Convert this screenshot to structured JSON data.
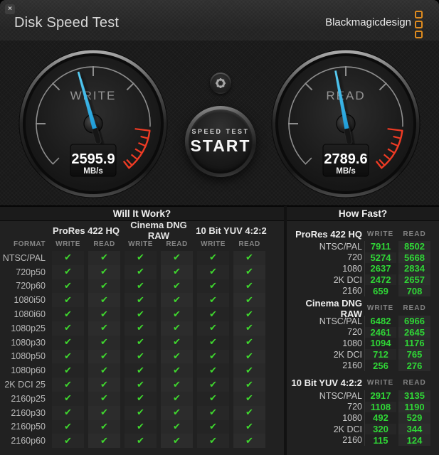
{
  "window": {
    "title": "Disk Speed Test",
    "brand": "Blackmagicdesign",
    "close_glyph": "×"
  },
  "gauges": {
    "write": {
      "label": "WRITE",
      "value": "2595.9",
      "unit": "MB/s"
    },
    "read": {
      "label": "READ",
      "value": "2789.6",
      "unit": "MB/s"
    }
  },
  "controls": {
    "start_label_small": "SPEED TEST",
    "start_label_big": "START"
  },
  "colors": {
    "accent_orange": "#de8b1f",
    "needle_blue": "#2fb5e9",
    "check_green": "#3fd82e",
    "value_green": "#2fd636",
    "redzone_red": "#ef3b24"
  },
  "will_it_work": {
    "title": "Will It Work?",
    "format_header": "FORMAT",
    "codec_groups": [
      "ProRes 422 HQ",
      "Cinema DNG RAW",
      "10 Bit YUV 4:2:2"
    ],
    "sub_headers": [
      "WRITE",
      "READ"
    ],
    "check_glyph": "✔",
    "rows": [
      {
        "format": "NTSC/PAL",
        "checks": [
          true,
          true,
          true,
          true,
          true,
          true
        ]
      },
      {
        "format": "720p50",
        "checks": [
          true,
          true,
          true,
          true,
          true,
          true
        ]
      },
      {
        "format": "720p60",
        "checks": [
          true,
          true,
          true,
          true,
          true,
          true
        ]
      },
      {
        "format": "1080i50",
        "checks": [
          true,
          true,
          true,
          true,
          true,
          true
        ]
      },
      {
        "format": "1080i60",
        "checks": [
          true,
          true,
          true,
          true,
          true,
          true
        ]
      },
      {
        "format": "1080p25",
        "checks": [
          true,
          true,
          true,
          true,
          true,
          true
        ]
      },
      {
        "format": "1080p30",
        "checks": [
          true,
          true,
          true,
          true,
          true,
          true
        ]
      },
      {
        "format": "1080p50",
        "checks": [
          true,
          true,
          true,
          true,
          true,
          true
        ]
      },
      {
        "format": "1080p60",
        "checks": [
          true,
          true,
          true,
          true,
          true,
          true
        ]
      },
      {
        "format": "2K DCI 25",
        "checks": [
          true,
          true,
          true,
          true,
          true,
          true
        ]
      },
      {
        "format": "2160p25",
        "checks": [
          true,
          true,
          true,
          true,
          true,
          true
        ]
      },
      {
        "format": "2160p30",
        "checks": [
          true,
          true,
          true,
          true,
          true,
          true
        ]
      },
      {
        "format": "2160p50",
        "checks": [
          true,
          true,
          true,
          true,
          true,
          true
        ]
      },
      {
        "format": "2160p60",
        "checks": [
          true,
          true,
          true,
          true,
          true,
          true
        ]
      }
    ]
  },
  "how_fast": {
    "title": "How Fast?",
    "col_headers": [
      "WRITE",
      "READ"
    ],
    "sections": [
      {
        "codec": "ProRes 422 HQ",
        "rows": [
          {
            "format": "NTSC/PAL",
            "write": "7911",
            "read": "8502"
          },
          {
            "format": "720",
            "write": "5274",
            "read": "5668"
          },
          {
            "format": "1080",
            "write": "2637",
            "read": "2834"
          },
          {
            "format": "2K DCI",
            "write": "2472",
            "read": "2657"
          },
          {
            "format": "2160",
            "write": "659",
            "read": "708"
          }
        ]
      },
      {
        "codec": "Cinema DNG RAW",
        "rows": [
          {
            "format": "NTSC/PAL",
            "write": "6482",
            "read": "6966"
          },
          {
            "format": "720",
            "write": "2461",
            "read": "2645"
          },
          {
            "format": "1080",
            "write": "1094",
            "read": "1176"
          },
          {
            "format": "2K DCI",
            "write": "712",
            "read": "765"
          },
          {
            "format": "2160",
            "write": "256",
            "read": "276"
          }
        ]
      },
      {
        "codec": "10 Bit YUV 4:2:2",
        "rows": [
          {
            "format": "NTSC/PAL",
            "write": "2917",
            "read": "3135"
          },
          {
            "format": "720",
            "write": "1108",
            "read": "1190"
          },
          {
            "format": "1080",
            "write": "492",
            "read": "529"
          },
          {
            "format": "2K DCI",
            "write": "320",
            "read": "344"
          },
          {
            "format": "2160",
            "write": "115",
            "read": "124"
          }
        ]
      }
    ]
  }
}
